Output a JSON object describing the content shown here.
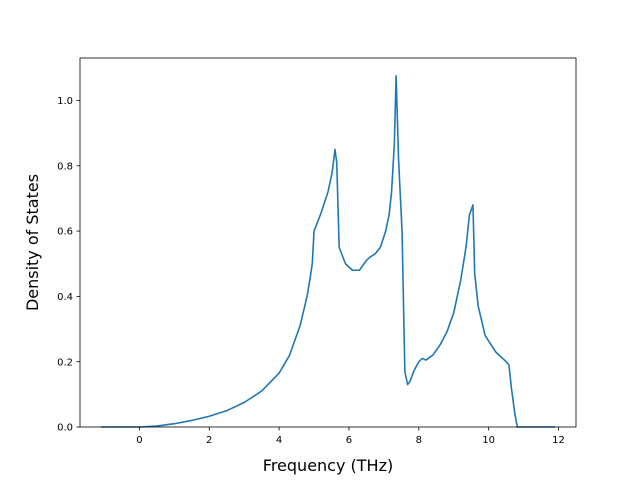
{
  "chart_data": {
    "type": "line",
    "title": "",
    "xlabel": "Frequency (THz)",
    "ylabel": "Density of States",
    "xlim": [
      -1.7,
      12.5
    ],
    "ylim": [
      0.0,
      1.13
    ],
    "xticks": [
      0,
      2,
      4,
      6,
      8,
      10,
      12
    ],
    "xtick_labels": [
      "0",
      "2",
      "4",
      "6",
      "8",
      "10",
      "12"
    ],
    "yticks": [
      0.0,
      0.2,
      0.4,
      0.6,
      0.8,
      1.0
    ],
    "ytick_labels": [
      "0.0",
      "0.2",
      "0.4",
      "0.6",
      "0.8",
      "1.0"
    ],
    "grid": false,
    "legend": "none",
    "color": "#1f77b4",
    "series": [
      {
        "x": [
          -1.1,
          -0.5,
          0.0,
          0.5,
          1.0,
          1.5,
          2.0,
          2.5,
          3.0,
          3.5,
          4.0,
          4.3,
          4.6,
          4.8,
          4.88,
          4.95,
          5.0,
          5.2,
          5.4,
          5.52,
          5.6,
          5.65,
          5.72,
          5.9,
          6.1,
          6.3,
          6.5,
          6.6,
          6.75,
          6.9,
          7.05,
          7.15,
          7.22,
          7.3,
          7.35,
          7.42,
          7.52,
          7.6,
          7.68,
          7.75,
          7.85,
          8.0,
          8.1,
          8.2,
          8.4,
          8.6,
          8.8,
          9.0,
          9.2,
          9.35,
          9.45,
          9.55,
          9.6,
          9.7,
          9.9,
          10.2,
          10.5,
          10.58,
          10.65,
          10.75,
          10.82,
          11.0,
          11.5,
          11.9
        ],
        "y": [
          0.0,
          0.0,
          0.0,
          0.003,
          0.01,
          0.02,
          0.033,
          0.05,
          0.075,
          0.11,
          0.165,
          0.22,
          0.31,
          0.4,
          0.45,
          0.5,
          0.6,
          0.655,
          0.72,
          0.78,
          0.85,
          0.81,
          0.55,
          0.5,
          0.48,
          0.48,
          0.51,
          0.52,
          0.53,
          0.55,
          0.6,
          0.65,
          0.72,
          0.87,
          1.075,
          0.82,
          0.6,
          0.17,
          0.13,
          0.14,
          0.17,
          0.2,
          0.21,
          0.205,
          0.22,
          0.25,
          0.29,
          0.35,
          0.45,
          0.55,
          0.65,
          0.68,
          0.47,
          0.37,
          0.28,
          0.23,
          0.2,
          0.19,
          0.12,
          0.04,
          0.0,
          0.0,
          0.0,
          0.0
        ]
      }
    ]
  }
}
